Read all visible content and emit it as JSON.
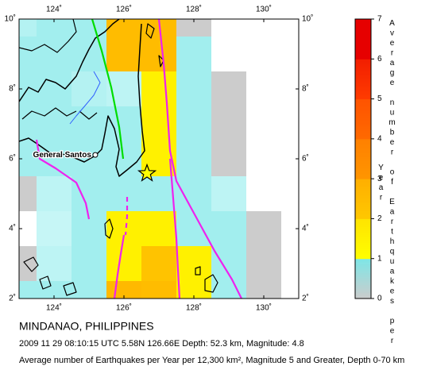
{
  "map": {
    "lon_ticks": [
      {
        "value": 124,
        "label": "124˚"
      },
      {
        "value": 126,
        "label": "126˚"
      },
      {
        "value": 128,
        "label": "128˚"
      },
      {
        "value": 130,
        "label": "130˚"
      }
    ],
    "lat_ticks": [
      {
        "value": 10,
        "label": "10˚"
      },
      {
        "value": 8,
        "label": "8˚"
      },
      {
        "value": 6,
        "label": "6˚"
      },
      {
        "value": 4,
        "label": "4˚"
      },
      {
        "value": 2,
        "label": "2˚"
      }
    ],
    "lonlim": [
      123,
      131
    ],
    "latlim": [
      2,
      10
    ],
    "cells": {
      "lons": [
        123,
        124,
        125,
        126,
        127,
        128,
        129,
        130,
        131
      ],
      "lats": [
        10,
        9,
        8,
        7,
        6,
        5,
        4,
        3,
        2
      ],
      "values": [
        [
          0.4,
          0.6,
          0.6,
          2.5,
          2.5,
          0,
          null,
          null,
          null
        ],
        [
          0.6,
          0.6,
          0.6,
          2.5,
          2.5,
          0.6,
          null,
          null,
          null
        ],
        [
          0.6,
          0.6,
          0.4,
          0.3,
          1.5,
          0.6,
          0,
          null,
          null
        ],
        [
          0.6,
          0.6,
          0.6,
          0.6,
          1.5,
          0.6,
          0,
          null,
          null
        ],
        [
          0.6,
          0.6,
          0.6,
          0.6,
          1.5,
          0.6,
          0,
          null,
          null
        ],
        [
          0,
          0.3,
          0.6,
          0.6,
          0.6,
          0.6,
          0.3,
          null,
          null
        ],
        [
          null,
          0.2,
          0.6,
          1.5,
          1.5,
          0.6,
          0.6,
          0,
          null
        ],
        [
          0,
          0.3,
          0.6,
          1.5,
          2.2,
          1.5,
          0.6,
          0,
          null
        ],
        [
          0.6,
          0.6,
          0.6,
          2.6,
          2.5,
          1.5,
          0.6,
          0,
          null
        ]
      ]
    },
    "epicenter": {
      "lon": 126.66,
      "lat": 5.58
    },
    "place": {
      "name": "General Santos",
      "lon": 125.18,
      "lat": 6.11
    }
  },
  "colorbar": {
    "label": "Average number of Earthquakes per Year",
    "ticks": [
      0,
      1,
      2,
      3,
      4,
      5,
      6,
      7
    ],
    "colors": [
      "#b8f2f2",
      "#ffff00",
      "#ffc800",
      "#ff9600",
      "#ff6a00",
      "#ff3c00",
      "#e60000"
    ]
  },
  "caption": {
    "title": "MINDANAO, PHILIPPINES",
    "event": "2009 11 29 08:10:15 UTC 5.58N 126.66E Depth: 52.3 km, Magnitude: 4.8",
    "note": "Average number of Earthquakes per Year per 12,300 km², Magnitude 5 and Greater, Depth 0-70 km"
  }
}
